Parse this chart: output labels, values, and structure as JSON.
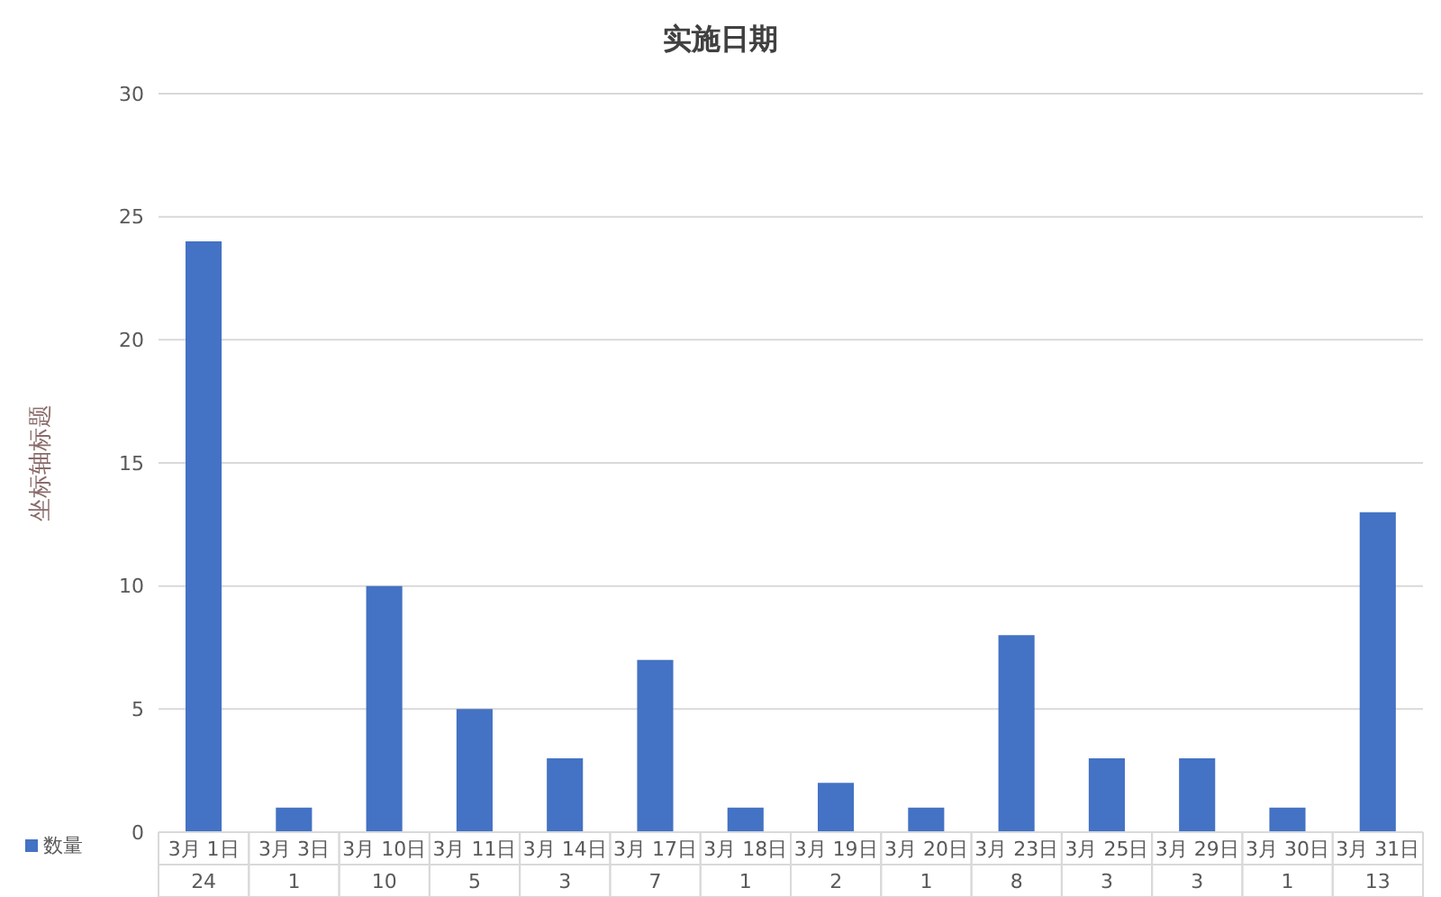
{
  "chart_data": {
    "type": "bar",
    "title": "实施日期",
    "ylabel": "坐标轴标题",
    "categories": [
      "3月 1日",
      "3月 3日",
      "3月 10日",
      "3月 11日",
      "3月 14日",
      "3月 17日",
      "3月 18日",
      "3月 19日",
      "3月 20日",
      "3月 23日",
      "3月 25日",
      "3月 29日",
      "3月 30日",
      "3月 31日"
    ],
    "series": [
      {
        "name": "数量",
        "color": "#4472c4",
        "values": [
          24,
          1,
          10,
          5,
          3,
          7,
          1,
          2,
          1,
          8,
          3,
          3,
          1,
          13
        ]
      }
    ],
    "ylim": [
      0,
      30
    ],
    "yticks": [
      0,
      5,
      10,
      15,
      20,
      25,
      30
    ],
    "grid": "y",
    "legend": "bottom left",
    "data_labels": true
  }
}
